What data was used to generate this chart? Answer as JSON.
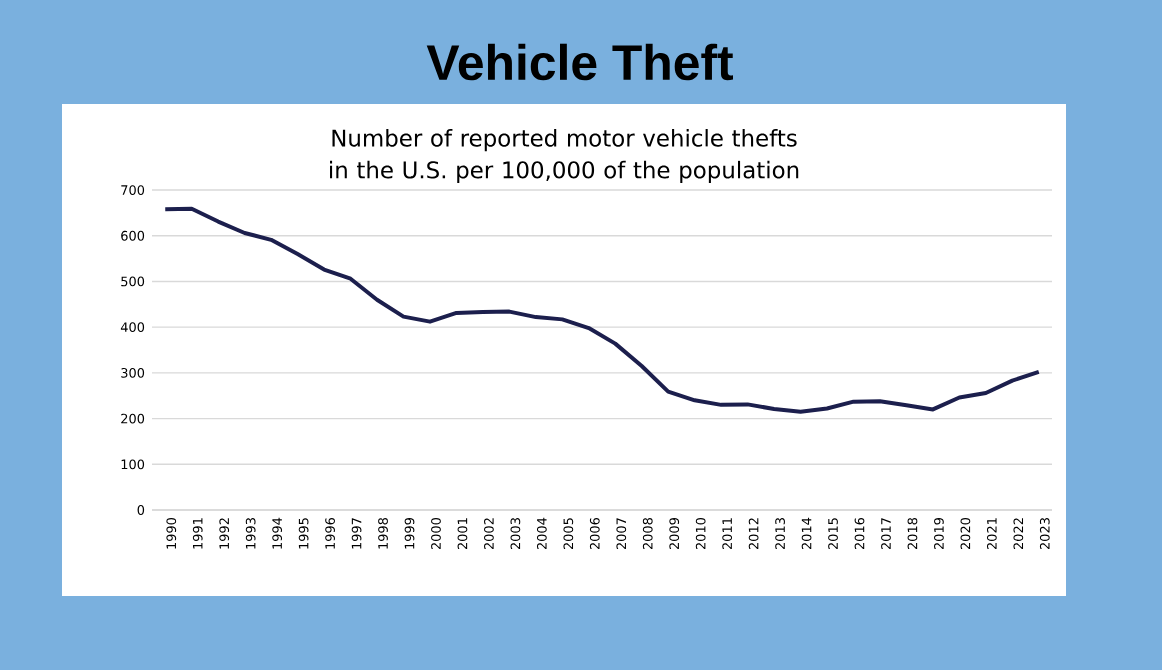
{
  "chart_data": {
    "type": "line",
    "title": "Vehicle Theft",
    "subtitle": "Number of reported motor vehicle thefts in the U.S. per 100,000 of the population",
    "categories": [
      "1990",
      "1991",
      "1992",
      "1993",
      "1994",
      "1995",
      "1996",
      "1997",
      "1998",
      "1999",
      "2000",
      "2001",
      "2002",
      "2003",
      "2004",
      "2005",
      "2006",
      "2007",
      "2008",
      "2009",
      "2010",
      "2011",
      "2012",
      "2013",
      "2014",
      "2015",
      "2016",
      "2017",
      "2018",
      "2019",
      "2020",
      "2021",
      "2022",
      "2023"
    ],
    "series": [
      {
        "color": "#1c1f4d",
        "values": [
          658,
          659,
          631,
          606,
          591,
          560,
          526,
          506,
          460,
          423,
          412,
          431,
          433,
          434,
          422,
          417,
          398,
          364,
          315,
          259,
          240,
          230,
          231,
          221,
          215,
          222,
          237,
          238,
          229,
          220,
          246,
          256,
          283,
          302
        ]
      }
    ],
    "ylim": [
      0,
      700
    ],
    "yticks": [
      0,
      100,
      200,
      300,
      400,
      500,
      600,
      700
    ],
    "grid": "y",
    "marker": "none",
    "line_style": "solid"
  }
}
